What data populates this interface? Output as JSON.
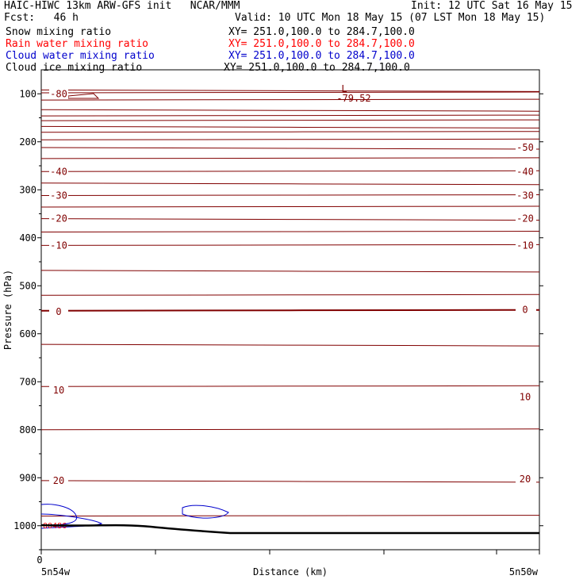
{
  "header": {
    "title_left": "HAIC-HIWC 13km ARW-GFS init   NCAR/MMM",
    "init": "Init: 12 UTC Sat 16 May 15",
    "fcst": "Fcst:   46 h",
    "valid": "Valid: 10 UTC Mon 18 May 15 (07 LST Mon 18 May 15)"
  },
  "legend": [
    {
      "label": "Snow mixing ratio",
      "xy": "XY= 251.0,100.0 to 284.7,100.0",
      "color": "#000000"
    },
    {
      "label": "Rain water mixing ratio",
      "xy": "XY= 251.0,100.0 to 284.7,100.0",
      "color": "#ff0000"
    },
    {
      "label": "Cloud water mixing ratio",
      "xy": "XY= 251.0,100.0 to 284.7,100.0",
      "color": "#0000cc"
    },
    {
      "label": "Cloud ice mixing ratio",
      "xy": "XY= 251.0,100.0 to 284.7,100.0",
      "color": "#000000"
    }
  ],
  "chart_data": {
    "type": "contour",
    "ylabel": "Pressure (hPa)",
    "xlabel": "Distance (km)",
    "y_ticks": [
      100,
      200,
      300,
      400,
      500,
      600,
      700,
      800,
      900,
      1000
    ],
    "ylim": [
      1050,
      50
    ],
    "x_zero_label": "0",
    "x_end_labels": [
      "5n54w",
      "5n50w"
    ],
    "low_label": "L",
    "low_value": "-79.52",
    "bottom_left_label": "00486",
    "temperature_contour_labels": [
      {
        "text": "-80",
        "p": 100,
        "side": "left"
      },
      {
        "text": "-50",
        "p": 212,
        "side": "right"
      },
      {
        "text": "-40",
        "p": 262,
        "side": "left"
      },
      {
        "text": "-40",
        "p": 262,
        "side": "right"
      },
      {
        "text": "-30",
        "p": 312,
        "side": "left"
      },
      {
        "text": "-30",
        "p": 312,
        "side": "right"
      },
      {
        "text": "-20",
        "p": 360,
        "side": "left"
      },
      {
        "text": "-20",
        "p": 360,
        "side": "right"
      },
      {
        "text": "-10",
        "p": 416,
        "side": "left"
      },
      {
        "text": "-10",
        "p": 416,
        "side": "right"
      },
      {
        "text": "0",
        "p": 554,
        "side": "left"
      },
      {
        "text": "0",
        "p": 550,
        "side": "right"
      },
      {
        "text": "10",
        "p": 718,
        "side": "left"
      },
      {
        "text": "10",
        "p": 732,
        "side": "right"
      },
      {
        "text": "20",
        "p": 906,
        "side": "left"
      },
      {
        "text": "20",
        "p": 903,
        "side": "right"
      }
    ],
    "colors": {
      "contour": "#800000",
      "cloud_water": "#0000cc",
      "rain": "#ff0000",
      "terrain": "#000000"
    }
  }
}
